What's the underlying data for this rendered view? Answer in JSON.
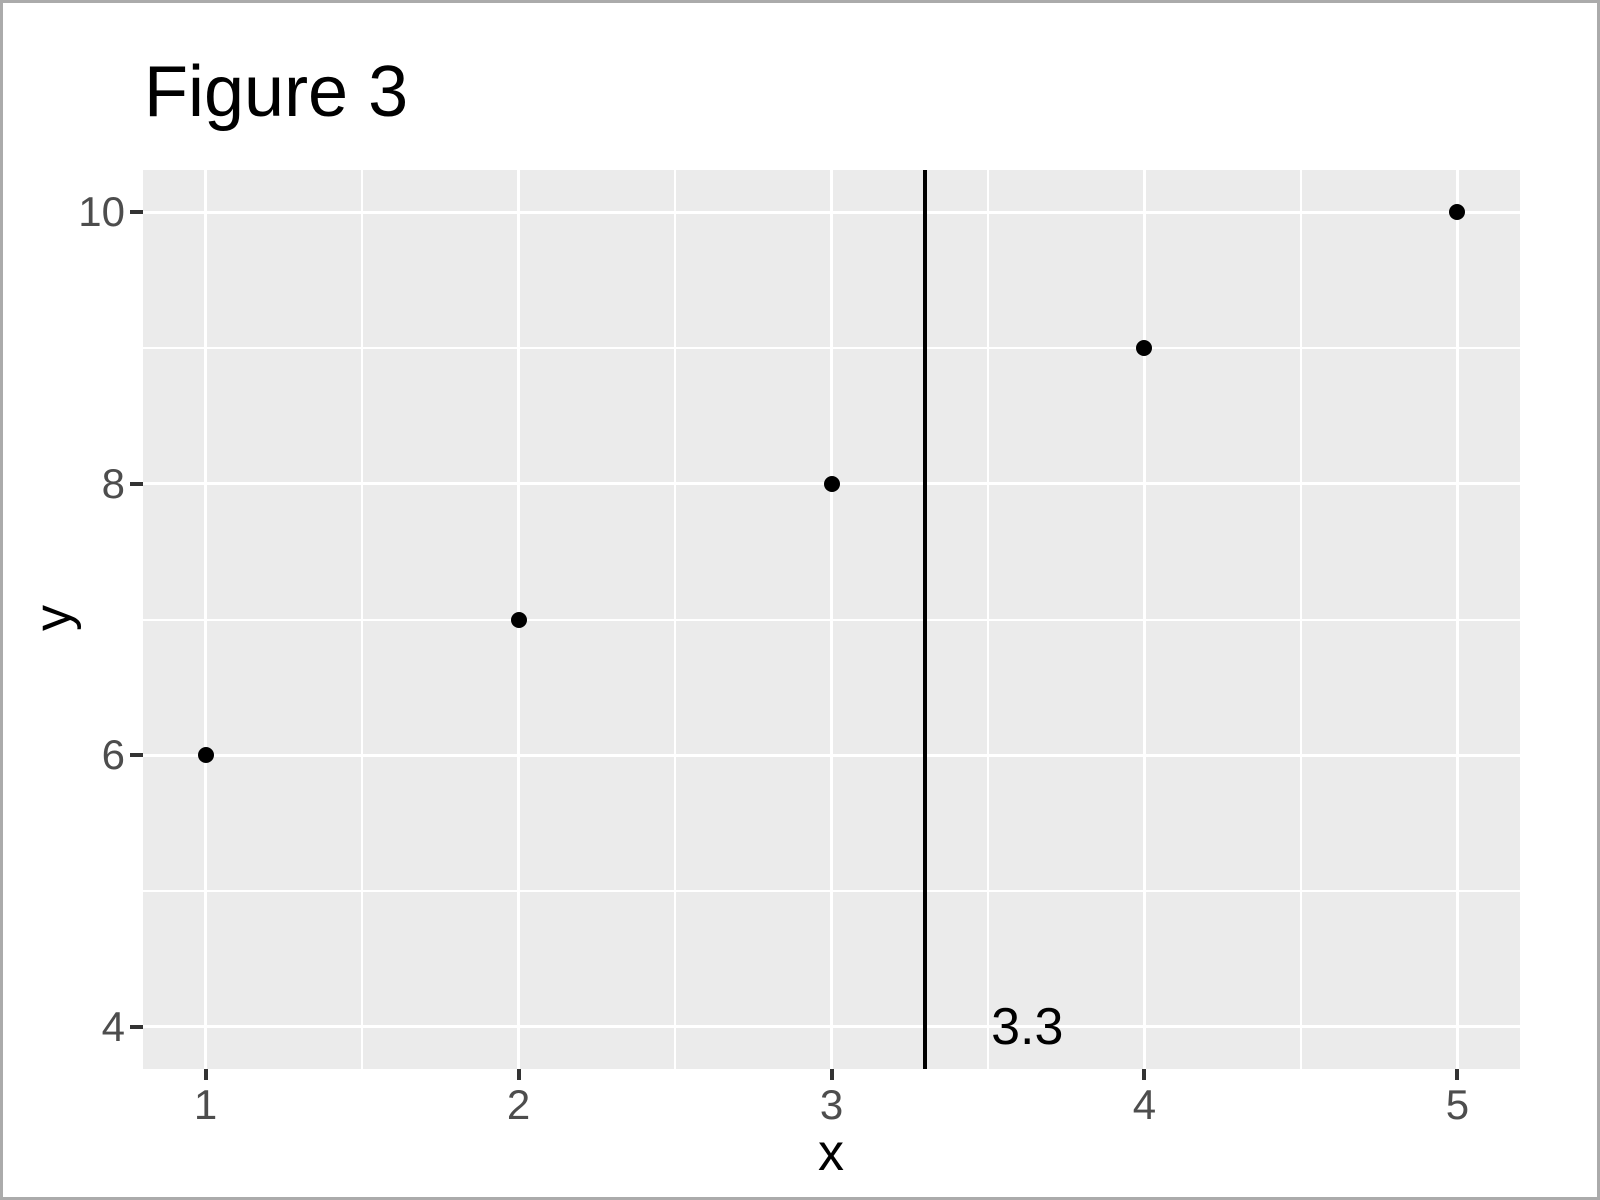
{
  "chart_data": {
    "type": "scatter",
    "title": "Figure 3",
    "xlabel": "x",
    "ylabel": "y",
    "points": [
      {
        "x": 1,
        "y": 6
      },
      {
        "x": 2,
        "y": 7
      },
      {
        "x": 3,
        "y": 8
      },
      {
        "x": 4,
        "y": 9
      },
      {
        "x": 5,
        "y": 10
      }
    ],
    "x_major_ticks": [
      1,
      2,
      3,
      4,
      5
    ],
    "x_minor_ticks": [
      1.5,
      2.5,
      3.5,
      4.5
    ],
    "y_major_ticks": [
      4,
      6,
      8,
      10
    ],
    "y_minor_ticks": [
      5,
      7,
      9
    ],
    "xlim": [
      0.8,
      5.2
    ],
    "ylim": [
      3.69,
      10.31
    ],
    "grid": true,
    "legend": "none",
    "vline": {
      "x": 3.3,
      "label": "3.3",
      "label_x": 3.51,
      "label_y": 4
    },
    "colors": {
      "panel_background": "#EBEBEB",
      "gridline": "#FFFFFF",
      "point": "#000000",
      "reference_line": "#000000",
      "tick_label": "#4D4D4D",
      "tick_mark": "#333333",
      "title_text": "#000000",
      "frame_border": "#ABABAB",
      "outer_background": "#FFFFFF"
    }
  }
}
